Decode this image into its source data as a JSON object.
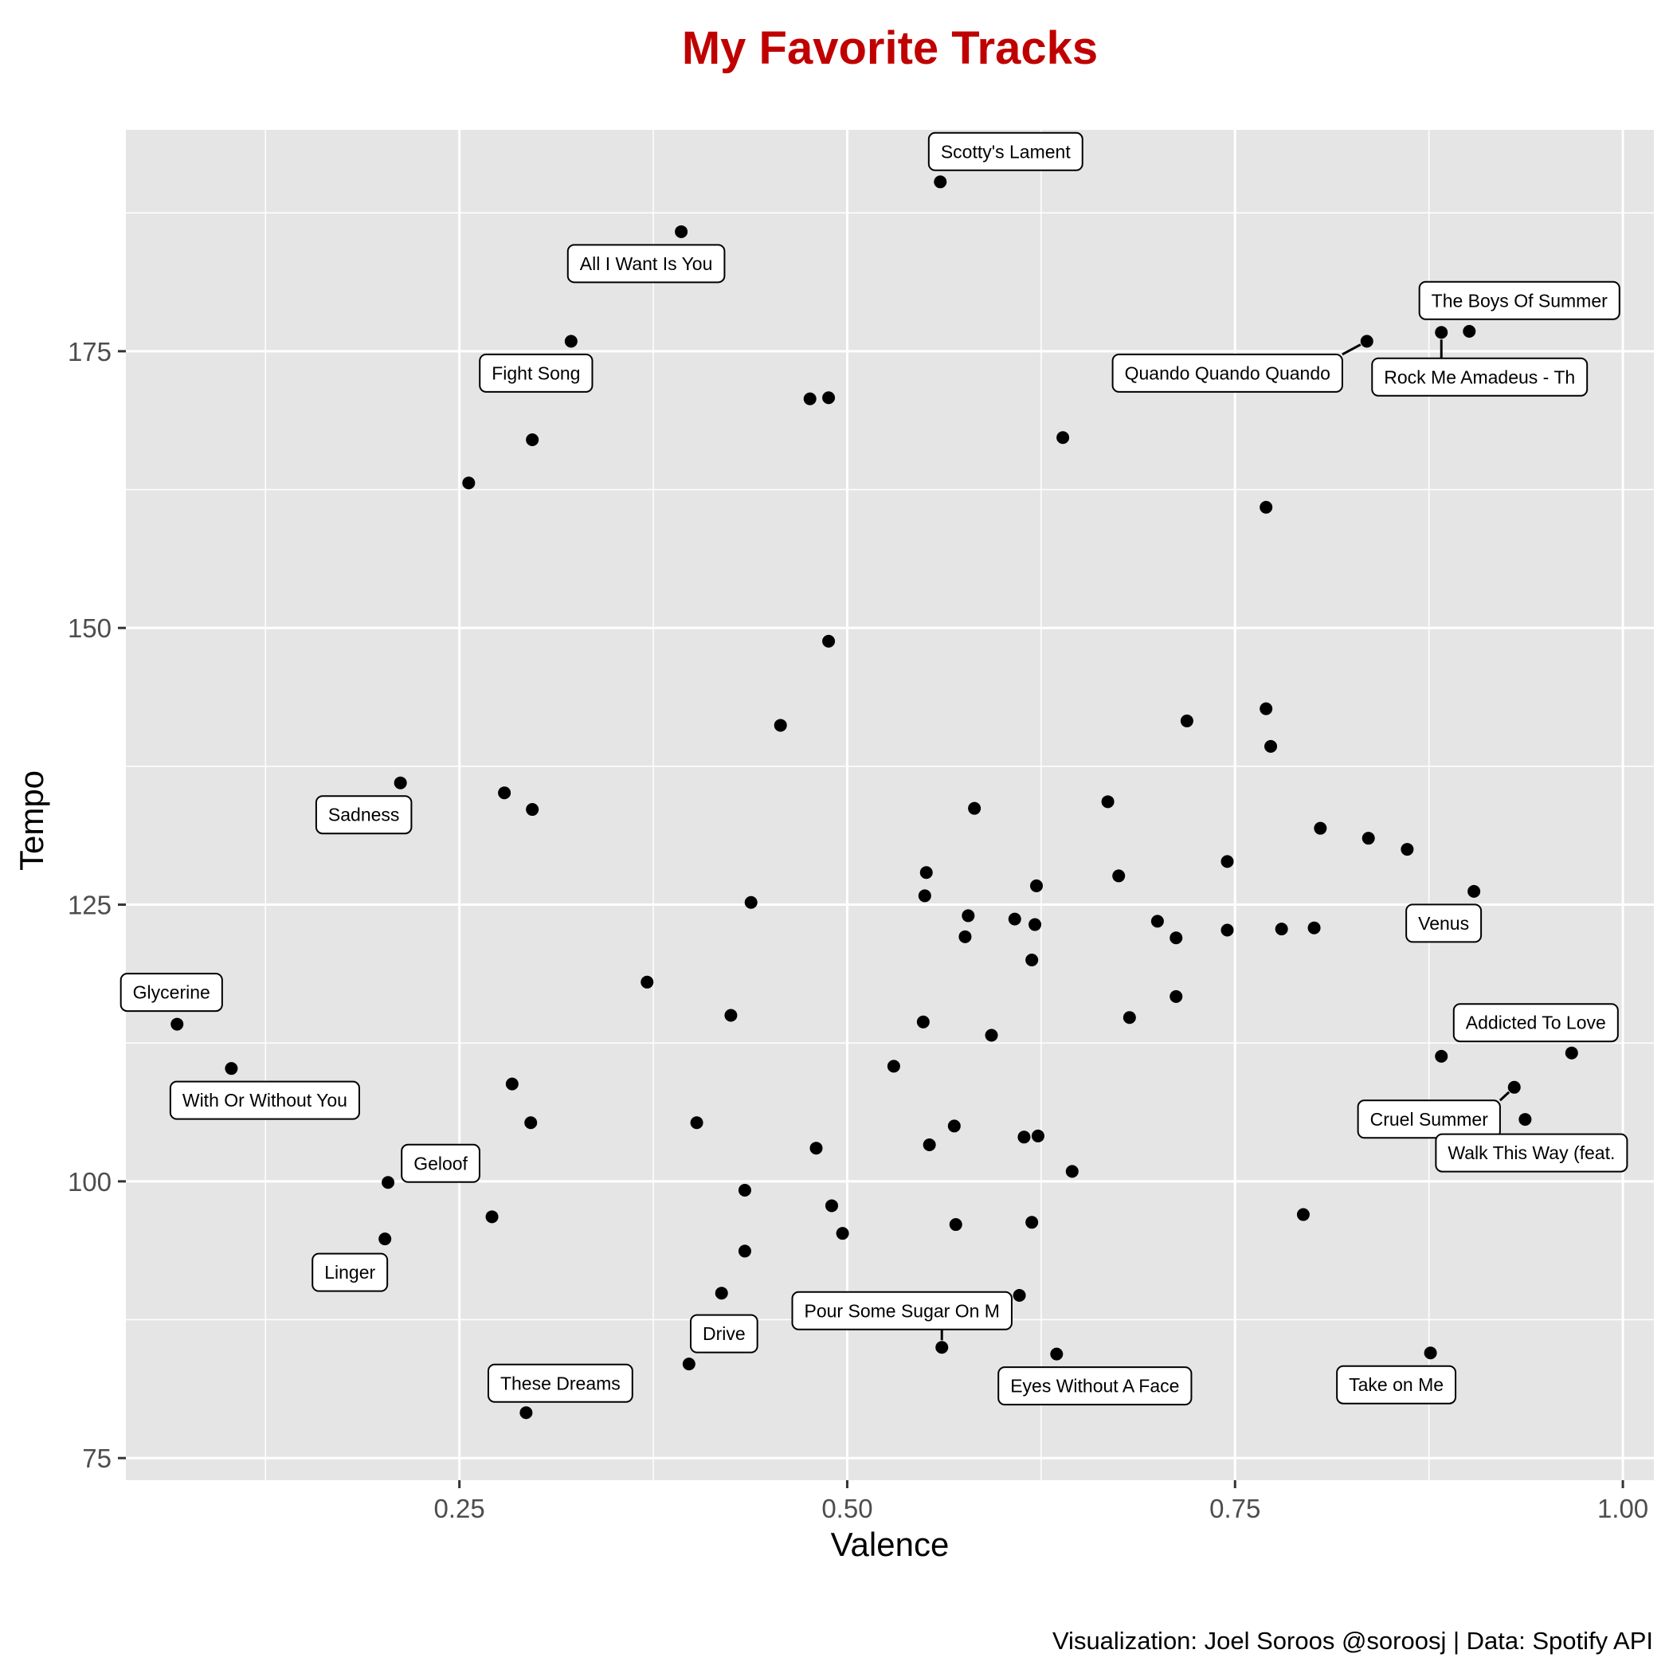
{
  "chart_data": {
    "type": "scatter",
    "title": "My Favorite Tracks",
    "xlabel": "Valence",
    "ylabel": "Tempo",
    "caption": "Visualization: Joel Soroos @soroosj  |  Data: Spotify API",
    "xlim": [
      0.035,
      1.02
    ],
    "ylim": [
      73,
      195
    ],
    "x_ticks": [
      0.25,
      0.5,
      0.75,
      1.0
    ],
    "x_tick_labels": [
      "0.25",
      "0.50",
      "0.75",
      "1.00"
    ],
    "y_ticks": [
      75,
      100,
      125,
      150,
      175
    ],
    "y_tick_labels": [
      "75",
      "100",
      "125",
      "150",
      "175"
    ],
    "grid": true,
    "colors": {
      "title": "#c00000",
      "panel": "#e5e5e5",
      "grid": "#ffffff",
      "point": "#000000",
      "label_fill": "#ffffff",
      "label_border": "#000000"
    },
    "points": [
      {
        "x": 0.56,
        "y": 190.3
      },
      {
        "x": 0.393,
        "y": 185.8
      },
      {
        "x": 0.322,
        "y": 175.9
      },
      {
        "x": 0.835,
        "y": 175.9
      },
      {
        "x": 0.883,
        "y": 176.7
      },
      {
        "x": 0.901,
        "y": 176.8
      },
      {
        "x": 0.476,
        "y": 170.7
      },
      {
        "x": 0.488,
        "y": 170.8
      },
      {
        "x": 0.297,
        "y": 167.0
      },
      {
        "x": 0.639,
        "y": 167.2
      },
      {
        "x": 0.256,
        "y": 163.1
      },
      {
        "x": 0.77,
        "y": 160.9
      },
      {
        "x": 0.488,
        "y": 148.8
      },
      {
        "x": 0.457,
        "y": 141.2
      },
      {
        "x": 0.719,
        "y": 141.6
      },
      {
        "x": 0.77,
        "y": 142.7
      },
      {
        "x": 0.773,
        "y": 139.3
      },
      {
        "x": 0.212,
        "y": 136.0
      },
      {
        "x": 0.279,
        "y": 135.1
      },
      {
        "x": 0.297,
        "y": 133.6
      },
      {
        "x": 0.582,
        "y": 133.7
      },
      {
        "x": 0.668,
        "y": 134.3
      },
      {
        "x": 0.805,
        "y": 131.9
      },
      {
        "x": 0.836,
        "y": 131.0
      },
      {
        "x": 0.861,
        "y": 130.0
      },
      {
        "x": 0.551,
        "y": 127.9
      },
      {
        "x": 0.675,
        "y": 127.6
      },
      {
        "x": 0.745,
        "y": 128.9
      },
      {
        "x": 0.904,
        "y": 126.2
      },
      {
        "x": 0.55,
        "y": 125.8
      },
      {
        "x": 0.622,
        "y": 126.7
      },
      {
        "x": 0.438,
        "y": 125.2
      },
      {
        "x": 0.578,
        "y": 124.0
      },
      {
        "x": 0.608,
        "y": 123.7
      },
      {
        "x": 0.621,
        "y": 123.2
      },
      {
        "x": 0.7,
        "y": 123.5
      },
      {
        "x": 0.576,
        "y": 122.1
      },
      {
        "x": 0.712,
        "y": 122.0
      },
      {
        "x": 0.745,
        "y": 122.7
      },
      {
        "x": 0.78,
        "y": 122.8
      },
      {
        "x": 0.801,
        "y": 122.9
      },
      {
        "x": 0.619,
        "y": 120.0
      },
      {
        "x": 0.371,
        "y": 118.0
      },
      {
        "x": 0.712,
        "y": 116.7
      },
      {
        "x": 0.425,
        "y": 115.0
      },
      {
        "x": 0.682,
        "y": 114.8
      },
      {
        "x": 0.549,
        "y": 114.4
      },
      {
        "x": 0.068,
        "y": 114.2
      },
      {
        "x": 0.593,
        "y": 113.2
      },
      {
        "x": 0.103,
        "y": 110.2
      },
      {
        "x": 0.53,
        "y": 110.4
      },
      {
        "x": 0.883,
        "y": 111.3
      },
      {
        "x": 0.967,
        "y": 111.6
      },
      {
        "x": 0.284,
        "y": 108.8
      },
      {
        "x": 0.93,
        "y": 108.5
      },
      {
        "x": 0.296,
        "y": 105.3
      },
      {
        "x": 0.403,
        "y": 105.3
      },
      {
        "x": 0.937,
        "y": 105.6
      },
      {
        "x": 0.569,
        "y": 105.0
      },
      {
        "x": 0.48,
        "y": 103.0
      },
      {
        "x": 0.553,
        "y": 103.3
      },
      {
        "x": 0.614,
        "y": 104.0
      },
      {
        "x": 0.623,
        "y": 104.1
      },
      {
        "x": 0.645,
        "y": 100.9
      },
      {
        "x": 0.204,
        "y": 99.9
      },
      {
        "x": 0.434,
        "y": 99.2
      },
      {
        "x": 0.49,
        "y": 97.8
      },
      {
        "x": 0.271,
        "y": 96.8
      },
      {
        "x": 0.794,
        "y": 97.0
      },
      {
        "x": 0.57,
        "y": 96.1
      },
      {
        "x": 0.619,
        "y": 96.3
      },
      {
        "x": 0.497,
        "y": 95.3
      },
      {
        "x": 0.202,
        "y": 94.8
      },
      {
        "x": 0.434,
        "y": 93.7
      },
      {
        "x": 0.419,
        "y": 89.9
      },
      {
        "x": 0.611,
        "y": 89.7
      },
      {
        "x": 0.561,
        "y": 85.0
      },
      {
        "x": 0.635,
        "y": 84.4
      },
      {
        "x": 0.876,
        "y": 84.5
      },
      {
        "x": 0.398,
        "y": 83.5
      },
      {
        "x": 0.293,
        "y": 79.1
      }
    ],
    "labels": [
      {
        "text": "Scotty's Lament",
        "x": 0.56,
        "y": 190.3
      },
      {
        "text": "All I Want Is You",
        "x": 0.393,
        "y": 185.8
      },
      {
        "text": "Fight Song",
        "x": 0.322,
        "y": 175.9
      },
      {
        "text": "The Boys Of Summer",
        "x": 0.883,
        "y": 176.7
      },
      {
        "text": "Quando Quando Quando",
        "x": 0.835,
        "y": 175.9
      },
      {
        "text": "Rock Me Amadeus - Th",
        "x": 0.883,
        "y": 176.7
      },
      {
        "text": "Sadness",
        "x": 0.212,
        "y": 136.0
      },
      {
        "text": "Venus",
        "x": 0.904,
        "y": 126.2
      },
      {
        "text": "Glycerine",
        "x": 0.068,
        "y": 114.2
      },
      {
        "text": "Addicted To Love",
        "x": 0.967,
        "y": 111.6
      },
      {
        "text": "With Or Without You",
        "x": 0.103,
        "y": 110.2
      },
      {
        "text": "Cruel Summer",
        "x": 0.93,
        "y": 108.5
      },
      {
        "text": "Walk This Way (feat.",
        "x": 0.937,
        "y": 105.6
      },
      {
        "text": "Geloof",
        "x": 0.204,
        "y": 99.9
      },
      {
        "text": "Linger",
        "x": 0.202,
        "y": 94.8
      },
      {
        "text": "Pour Some Sugar On M",
        "x": 0.561,
        "y": 85.0
      },
      {
        "text": "Drive",
        "x": 0.398,
        "y": 83.5
      },
      {
        "text": "These Dreams",
        "x": 0.293,
        "y": 79.1
      },
      {
        "text": "Eyes Without A Face",
        "x": 0.635,
        "y": 84.4
      },
      {
        "text": "Take on Me",
        "x": 0.876,
        "y": 84.5
      }
    ]
  }
}
